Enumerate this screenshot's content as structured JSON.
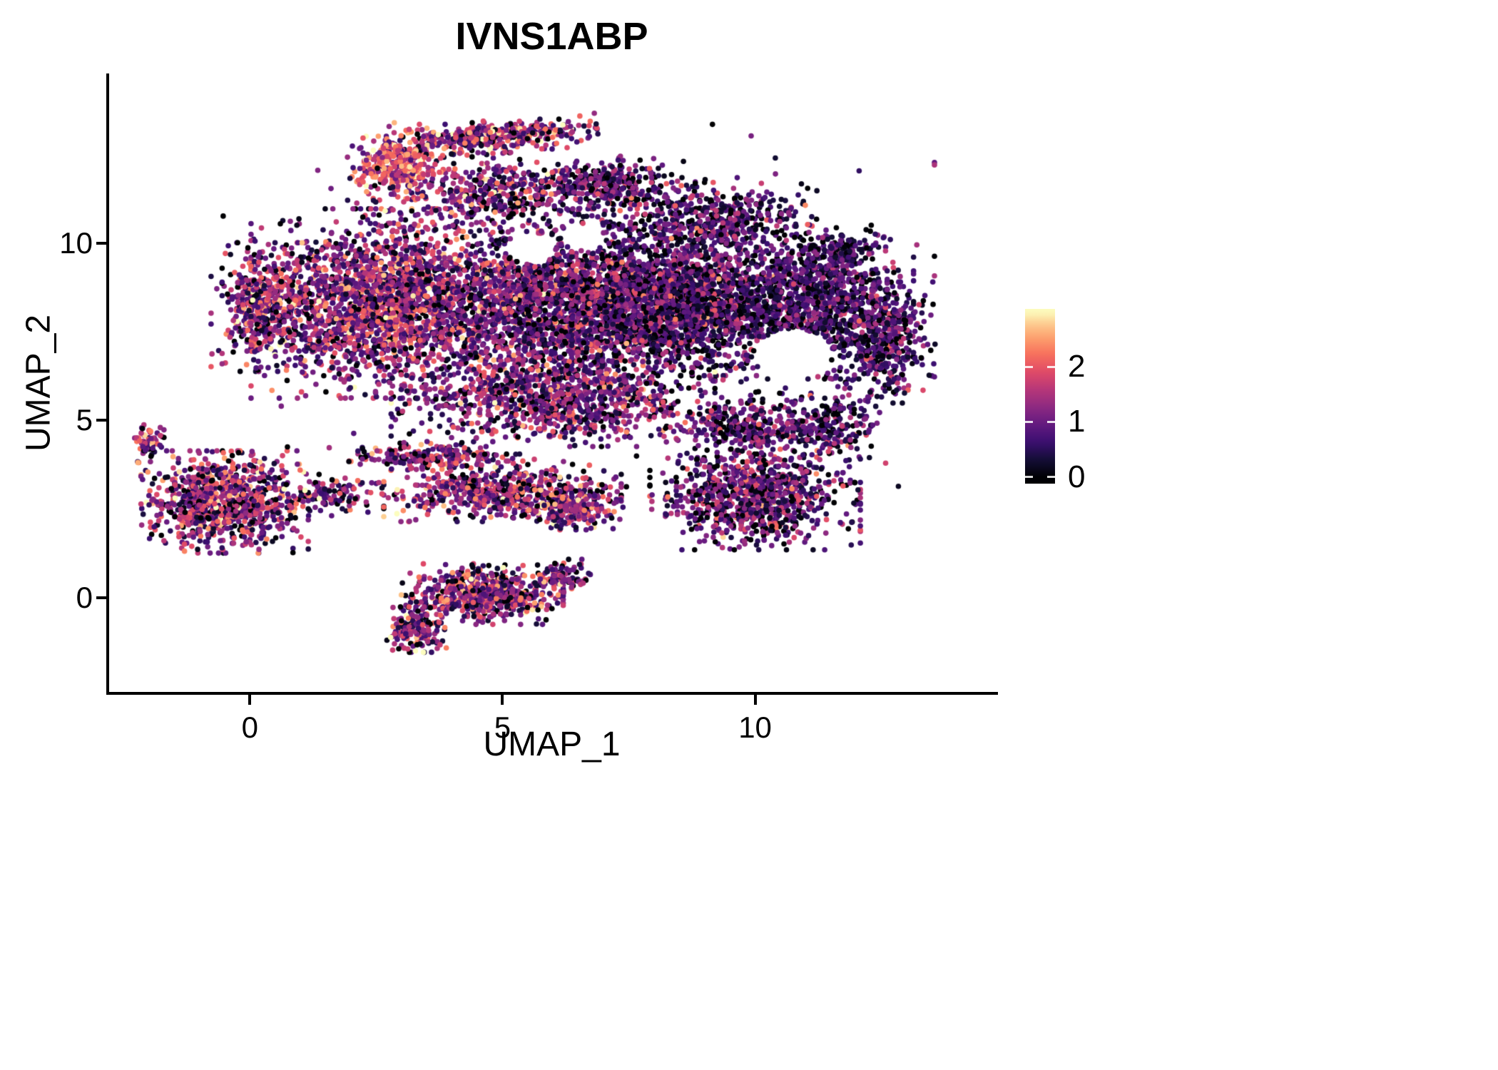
{
  "chart_data": {
    "type": "scatter",
    "title": "IVNS1ABP",
    "xlabel": "UMAP_1",
    "ylabel": "UMAP_2",
    "xlim": [
      -2.8,
      14.75
    ],
    "ylim": [
      -2.66,
      14.75
    ],
    "x_ticks": [
      0,
      5,
      10
    ],
    "y_ticks": [
      0,
      5,
      10
    ],
    "grid": false,
    "point_radius": 3.8,
    "seed": 42,
    "colors": {
      "background": "#ffffff",
      "axis": "#000000",
      "text": "#000000"
    },
    "legend": {
      "position": "right",
      "type": "colorbar",
      "ticks": [
        0,
        1,
        2
      ],
      "domain": [
        0,
        3
      ],
      "bar_range": [
        -0.12,
        3.05
      ]
    },
    "colormap": {
      "name": "magma",
      "stops": [
        [
          0.0,
          "#000004"
        ],
        [
          0.105,
          "#140e36"
        ],
        [
          0.21,
          "#3b0f70"
        ],
        [
          0.32,
          "#641a80"
        ],
        [
          0.42,
          "#8c2981"
        ],
        [
          0.53,
          "#b73779"
        ],
        [
          0.63,
          "#de4968"
        ],
        [
          0.74,
          "#f76f5c"
        ],
        [
          0.84,
          "#fd9f6d"
        ],
        [
          0.93,
          "#fdcd90"
        ],
        [
          1.0,
          "#fcfdbf"
        ]
      ]
    },
    "clusters": [
      {
        "name": "main-left",
        "cx": 2.8,
        "cy": 8.3,
        "rx": 2.6,
        "ry": 2.5,
        "rot": 0,
        "n": 2200,
        "expr_mean": 1.15,
        "expr_sd": 0.75
      },
      {
        "name": "left-edge",
        "cx": 0.3,
        "cy": 8.2,
        "rx": 1.0,
        "ry": 1.7,
        "rot": 0,
        "n": 450,
        "expr_mean": 1.2,
        "expr_sd": 0.8
      },
      {
        "name": "main-center",
        "cx": 6.2,
        "cy": 8.3,
        "rx": 2.3,
        "ry": 2.5,
        "rot": 0,
        "n": 1800,
        "expr_mean": 0.9,
        "expr_sd": 0.7
      },
      {
        "name": "main-right-dense",
        "cx": 8.4,
        "cy": 8.4,
        "rx": 1.9,
        "ry": 2.0,
        "rot": 0,
        "n": 1700,
        "expr_mean": 0.7,
        "expr_sd": 0.65
      },
      {
        "name": "main-far-right",
        "cx": 11.0,
        "cy": 8.2,
        "rx": 2.0,
        "ry": 1.9,
        "rot": 0,
        "n": 1300,
        "expr_mean": 0.6,
        "expr_sd": 0.6
      },
      {
        "name": "right-edge",
        "cx": 12.6,
        "cy": 7.2,
        "rx": 0.9,
        "ry": 1.6,
        "rot": 0,
        "n": 350,
        "expr_mean": 0.6,
        "expr_sd": 0.6
      },
      {
        "name": "ne-corner",
        "cx": 11.6,
        "cy": 9.6,
        "rx": 0.95,
        "ry": 0.85,
        "rot": 0,
        "n": 220,
        "expr_mean": 0.55,
        "expr_sd": 0.55
      },
      {
        "name": "ne-region",
        "cx": 9.3,
        "cy": 10.7,
        "rx": 1.8,
        "ry": 0.95,
        "rot": 0,
        "n": 400,
        "expr_mean": 0.7,
        "expr_sd": 0.6
      },
      {
        "name": "top-right-shelf",
        "cx": 7.0,
        "cy": 11.6,
        "rx": 1.7,
        "ry": 0.8,
        "rot": 0,
        "n": 380,
        "expr_mean": 0.8,
        "expr_sd": 0.7
      },
      {
        "name": "top-mid",
        "cx": 4.7,
        "cy": 11.4,
        "rx": 1.4,
        "ry": 1.0,
        "rot": 0,
        "n": 320,
        "expr_mean": 0.95,
        "expr_sd": 0.75
      },
      {
        "name": "top-arc",
        "cx": 4.8,
        "cy": 13.0,
        "rx": 1.95,
        "ry": 0.45,
        "rot": 0.12,
        "n": 430,
        "expr_mean": 1.3,
        "expr_sd": 0.9
      },
      {
        "name": "top-left-streak",
        "cx": 2.9,
        "cy": 12.2,
        "rx": 0.85,
        "ry": 0.95,
        "rot": 0.6,
        "n": 320,
        "expr_mean": 1.9,
        "expr_sd": 0.7
      },
      {
        "name": "main-lower",
        "cx": 6.0,
        "cy": 5.6,
        "rx": 3.0,
        "ry": 1.25,
        "rot": 0,
        "n": 900,
        "expr_mean": 0.95,
        "expr_sd": 0.7
      },
      {
        "name": "se-edge",
        "cx": 11.4,
        "cy": 4.9,
        "rx": 0.95,
        "ry": 0.95,
        "rot": 0,
        "n": 220,
        "expr_mean": 0.7,
        "expr_sd": 0.6
      },
      {
        "name": "right-lower",
        "cx": 10.0,
        "cy": 2.9,
        "rx": 1.95,
        "ry": 1.45,
        "rot": 0,
        "n": 950,
        "expr_mean": 0.85,
        "expr_sd": 0.7
      },
      {
        "name": "right-lower-bridge",
        "cx": 9.8,
        "cy": 4.8,
        "rx": 1.5,
        "ry": 0.85,
        "rot": 0,
        "n": 300,
        "expr_mean": 0.75,
        "expr_sd": 0.65
      },
      {
        "name": "mid-band",
        "cx": 5.0,
        "cy": 3.0,
        "rx": 2.2,
        "ry": 0.8,
        "rot": 0,
        "n": 600,
        "expr_mean": 1.15,
        "expr_sd": 0.8
      },
      {
        "name": "band-upper",
        "cx": 3.6,
        "cy": 4.0,
        "rx": 1.9,
        "ry": 0.35,
        "rot": 0,
        "n": 220,
        "expr_mean": 1.1,
        "expr_sd": 0.8
      },
      {
        "name": "band-clumps",
        "cx": 6.4,
        "cy": 2.5,
        "rx": 0.95,
        "ry": 0.55,
        "rot": 0,
        "n": 180,
        "expr_mean": 1.2,
        "expr_sd": 0.8
      },
      {
        "name": "bridge-left",
        "cx": 1.6,
        "cy": 2.9,
        "rx": 0.95,
        "ry": 0.55,
        "rot": 0,
        "n": 130,
        "expr_mean": 1.0,
        "expr_sd": 0.8
      },
      {
        "name": "left-cluster",
        "cx": -0.5,
        "cy": 2.7,
        "rx": 1.55,
        "ry": 1.35,
        "rot": 0,
        "n": 950,
        "expr_mean": 1.2,
        "expr_sd": 0.8
      },
      {
        "name": "left-tail",
        "cx": -2.0,
        "cy": 4.4,
        "rx": 0.28,
        "ry": 0.55,
        "rot": 0,
        "n": 70,
        "expr_mean": 1.3,
        "expr_sd": 0.8
      },
      {
        "name": "bottom-cluster",
        "cx": 4.6,
        "cy": 0.1,
        "rx": 1.5,
        "ry": 0.8,
        "rot": 0,
        "n": 620,
        "expr_mean": 1.15,
        "expr_sd": 0.8
      },
      {
        "name": "bottom-tail",
        "cx": 3.3,
        "cy": -0.9,
        "rx": 0.55,
        "ry": 0.6,
        "rot": 0,
        "n": 160,
        "expr_mean": 1.2,
        "expr_sd": 0.8
      },
      {
        "name": "bottom-right-tail",
        "cx": 6.2,
        "cy": 0.6,
        "rx": 0.6,
        "ry": 0.45,
        "rot": 0,
        "n": 90,
        "expr_mean": 1.1,
        "expr_sd": 0.8
      },
      {
        "name": "sparse-scatter",
        "cx": 6.5,
        "cy": 7.8,
        "rx": 6.6,
        "ry": 5.2,
        "rot": 0,
        "n": 420,
        "expr_mean": 0.8,
        "expr_sd": 0.7
      }
    ],
    "holes": [
      {
        "cx": 10.75,
        "cy": 6.85,
        "rx": 0.78,
        "ry": 0.72
      },
      {
        "cx": 5.55,
        "cy": 9.85,
        "rx": 0.5,
        "ry": 0.42
      },
      {
        "cx": 6.6,
        "cy": 10.15,
        "rx": 0.42,
        "ry": 0.35
      },
      {
        "cx": 7.9,
        "cy": 1.9,
        "rx": 0.45,
        "ry": 0.55
      }
    ]
  }
}
